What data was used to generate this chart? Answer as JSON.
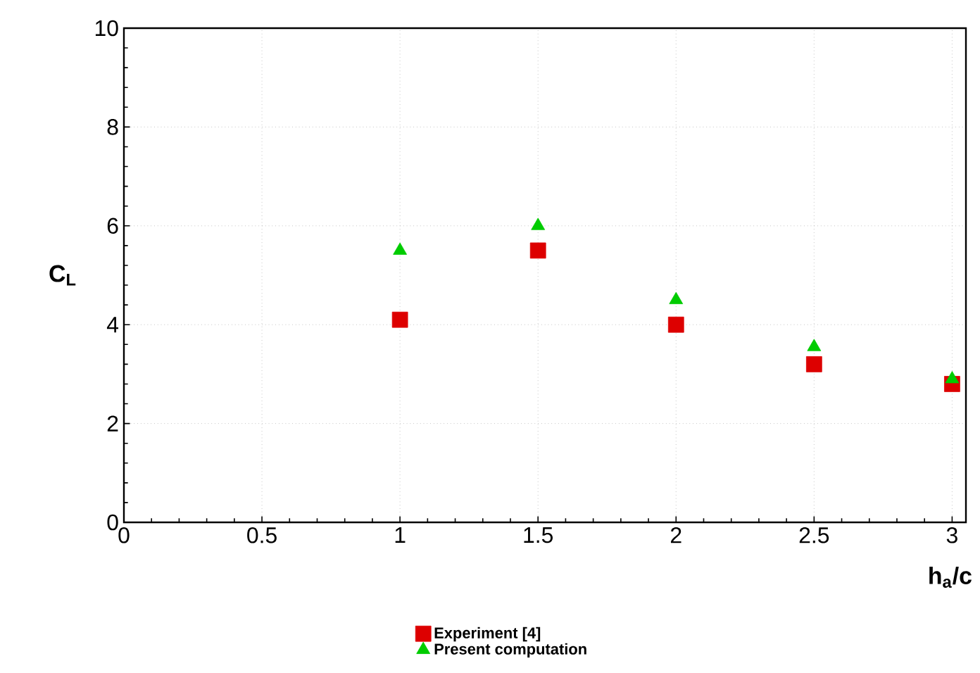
{
  "chart_data": {
    "type": "scatter",
    "xlabel": "h$_{a}$/c",
    "ylabel": "C$_{L}$",
    "x": [
      1,
      1.5,
      2,
      2.5,
      3
    ],
    "series": [
      {
        "name": "Experiment [4]",
        "color": "#dd0000",
        "marker": "square",
        "values": [
          4.1,
          5.5,
          4.0,
          3.2,
          2.8
        ]
      },
      {
        "name": "Present computation",
        "color": "#00cc00",
        "marker": "triangle",
        "values": [
          5.5,
          6.0,
          4.5,
          3.55,
          2.9
        ]
      }
    ],
    "xlim": [
      0,
      3.05
    ],
    "ylim": [
      0,
      10
    ],
    "xticks": [
      0,
      0.5,
      1,
      1.5,
      2,
      2.5,
      3
    ],
    "yticks": [
      0,
      2,
      4,
      6,
      8,
      10
    ],
    "grid": true,
    "legend": "bottom"
  }
}
